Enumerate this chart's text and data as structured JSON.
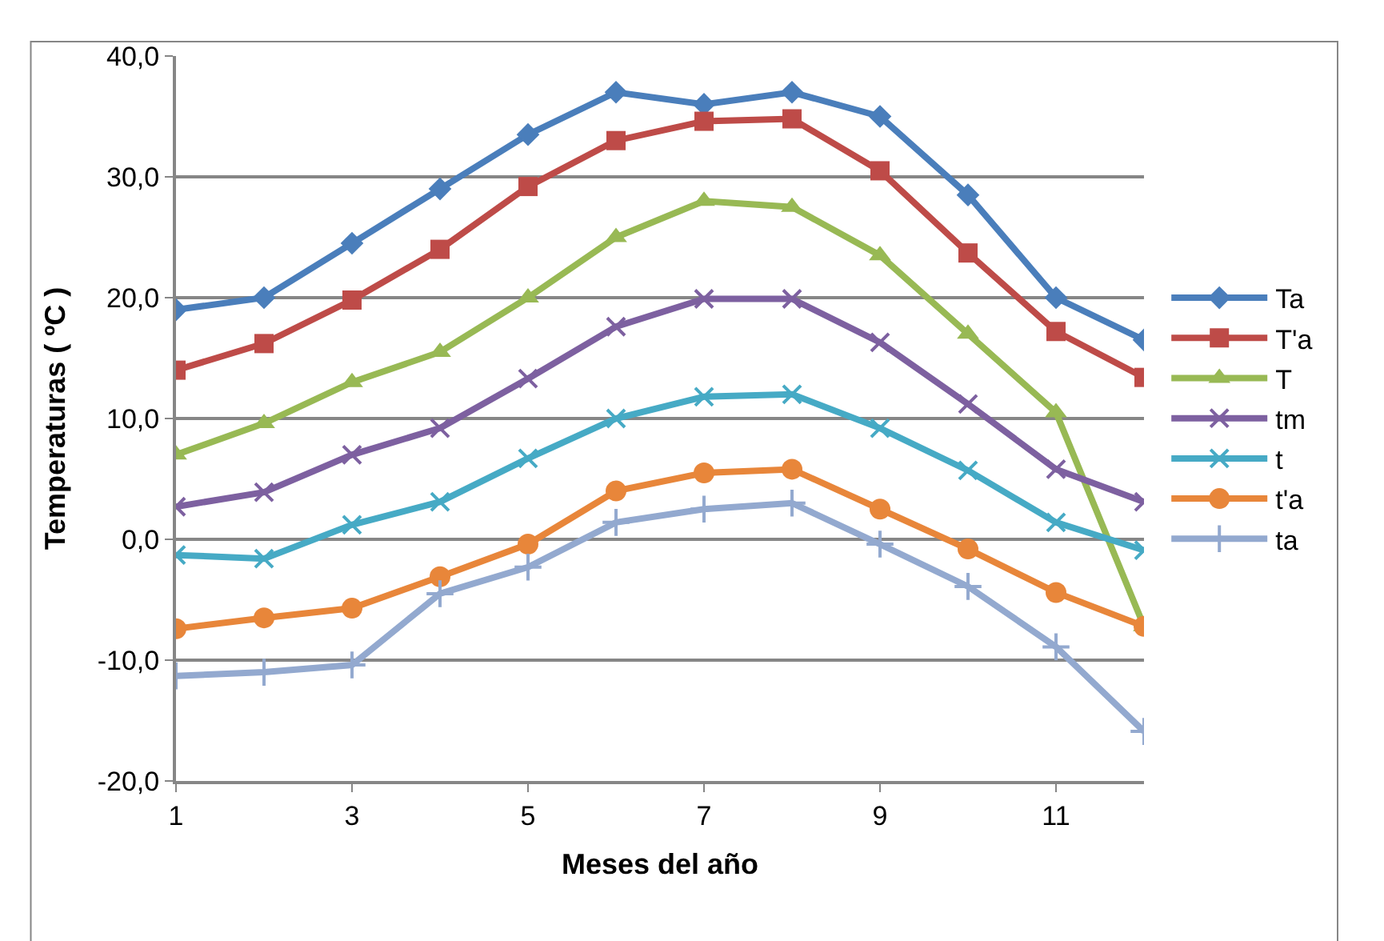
{
  "chart_data": {
    "type": "line",
    "xlabel": "Meses del año",
    "ylabel": "Temperaturas ( ºC )",
    "x": [
      1,
      2,
      3,
      4,
      5,
      6,
      7,
      8,
      9,
      10,
      11,
      12
    ],
    "xlim": [
      1,
      12
    ],
    "xticks": [
      1,
      3,
      5,
      7,
      9,
      11
    ],
    "ylim": [
      -20,
      40
    ],
    "yticks": [
      {
        "value": -20,
        "label": "-20,0"
      },
      {
        "value": -10,
        "label": "-10,0"
      },
      {
        "value": 0,
        "label": "0,0"
      },
      {
        "value": 10,
        "label": "10,0"
      },
      {
        "value": 20,
        "label": "20,0"
      },
      {
        "value": 30,
        "label": "30,0"
      },
      {
        "value": 40,
        "label": "40,0"
      }
    ],
    "grid": "y",
    "legend": "right",
    "line_style": "solid",
    "series": [
      {
        "name": "Ta",
        "color": "#4a7ebb",
        "marker": "diamond",
        "values": [
          19,
          20,
          24.5,
          29,
          33.5,
          37,
          36,
          37,
          35,
          28.5,
          20,
          16.5
        ]
      },
      {
        "name": "T'a",
        "color": "#be4b48",
        "marker": "square",
        "values": [
          14,
          16.2,
          19.8,
          24,
          29.2,
          33,
          34.6,
          34.8,
          30.5,
          23.7,
          17.2,
          13.4
        ]
      },
      {
        "name": "T",
        "color": "#98b954",
        "marker": "triangle",
        "values": [
          7,
          9.6,
          13,
          15.5,
          20,
          25,
          28,
          27.5,
          23.5,
          17,
          10.5,
          -7.2
        ]
      },
      {
        "name": "tm",
        "color": "#7d60a0",
        "marker": "cross",
        "values": [
          2.7,
          3.9,
          7,
          9.2,
          13.3,
          17.6,
          19.9,
          19.9,
          16.3,
          11.2,
          5.8,
          3.1
        ]
      },
      {
        "name": "t",
        "color": "#46aac5",
        "marker": "cross",
        "values": [
          -1.3,
          -1.6,
          1.2,
          3.1,
          6.7,
          10,
          11.8,
          12,
          9.2,
          5.7,
          1.4,
          -0.9
        ]
      },
      {
        "name": "t'a",
        "color": "#e8863a",
        "marker": "circle",
        "values": [
          -7.4,
          -6.5,
          -5.7,
          -3.1,
          -0.4,
          4,
          5.5,
          5.8,
          2.5,
          -0.8,
          -4.4,
          -7.2
        ]
      },
      {
        "name": "ta",
        "color": "#93a9cf",
        "marker": "plus",
        "values": [
          -11.3,
          -11,
          -10.4,
          -4.5,
          -2.3,
          1.4,
          2.5,
          3,
          -0.4,
          -3.9,
          -8.9,
          -15.9
        ]
      }
    ]
  }
}
